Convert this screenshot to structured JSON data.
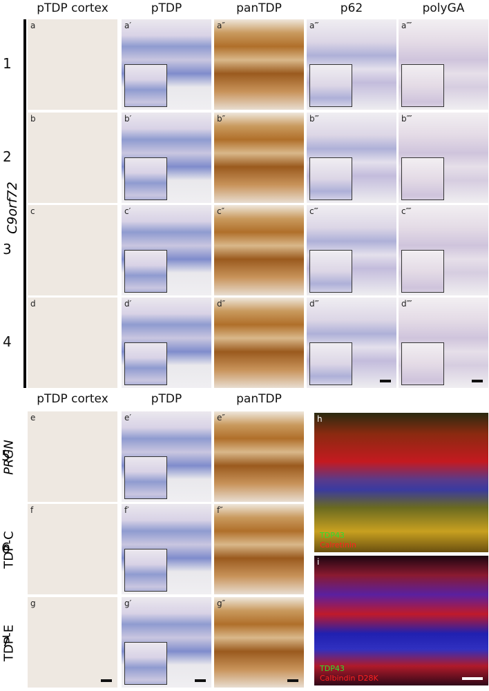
{
  "top": {
    "columns": [
      "pTDP cortex",
      "pTDP",
      "panTDP",
      "p62",
      "polyGA"
    ],
    "group_label": "C9orf72",
    "rows": [
      "1",
      "2",
      "3",
      "4"
    ],
    "panels": [
      [
        "a",
        "a′",
        "a″",
        "a‴",
        "a⁗"
      ],
      [
        "b",
        "b′",
        "b″",
        "b‴",
        "b⁗"
      ],
      [
        "c",
        "c′",
        "c″",
        "c‴",
        "c⁗"
      ],
      [
        "d",
        "d′",
        "d″",
        "d‴",
        "d⁗"
      ]
    ]
  },
  "bottom": {
    "columns": [
      "pTDP cortex",
      "pTDP",
      "panTDP"
    ],
    "rows": [
      {
        "number": "5",
        "label": "PRGN"
      },
      {
        "number": "6",
        "label": "TDP-C"
      },
      {
        "number": "7",
        "label": "TDP-E"
      }
    ],
    "panels": [
      [
        "e",
        "e′",
        "e″"
      ],
      [
        "f",
        "f′",
        "f″"
      ],
      [
        "g",
        "g′",
        "g″"
      ]
    ]
  },
  "fluorescence": [
    {
      "panel": "h",
      "labels": [
        "TDP43",
        "Calretinin"
      ]
    },
    {
      "panel": "i",
      "labels": [
        "TDP43",
        "Calbindin D28K"
      ]
    }
  ]
}
